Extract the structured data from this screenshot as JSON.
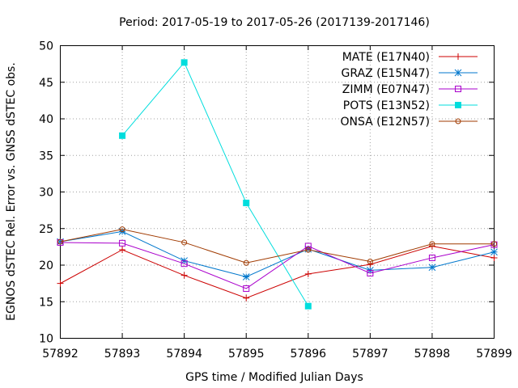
{
  "chart_data": {
    "type": "line",
    "title": "Period: 2017-05-19 to 2017-05-26 (2017139-2017146)",
    "xlabel": "GPS time / Modified Julian Days",
    "ylabel": "EGNOS dSTEC Rel. Error vs. GNSS dSTEC obs.",
    "xlim": [
      57892,
      57899
    ],
    "ylim": [
      10,
      50
    ],
    "xticks": [
      57892,
      57893,
      57894,
      57895,
      57896,
      57897,
      57898,
      57899
    ],
    "yticks": [
      10,
      15,
      20,
      25,
      30,
      35,
      40,
      45,
      50
    ],
    "grid": true,
    "legend_position": "top-right",
    "series": [
      {
        "name": "MATE (E17N40)",
        "color": "#cc0000",
        "marker": "plus",
        "x": [
          57892,
          57893,
          57894,
          57895,
          57896,
          57897,
          57898,
          57899
        ],
        "values": [
          17.5,
          22.1,
          18.6,
          15.5,
          18.8,
          20.1,
          22.6,
          21.0
        ]
      },
      {
        "name": "GRAZ (E15N47)",
        "color": "#0077cc",
        "marker": "star",
        "x": [
          57892,
          57893,
          57894,
          57895,
          57896,
          57897,
          57898,
          57899
        ],
        "values": [
          23.2,
          24.6,
          20.6,
          18.4,
          22.2,
          19.3,
          19.7,
          21.8
        ]
      },
      {
        "name": "ZIMM (E07N47)",
        "color": "#aa00cc",
        "marker": "square-open",
        "x": [
          57892,
          57893,
          57894,
          57895,
          57896,
          57897,
          57898,
          57899
        ],
        "values": [
          23.1,
          23.0,
          20.2,
          16.8,
          22.6,
          18.9,
          21.0,
          22.8
        ]
      },
      {
        "name": "POTS (E13N52)",
        "color": "#00dddd",
        "marker": "square-filled",
        "x": [
          57893,
          57894,
          57895,
          57896
        ],
        "values": [
          37.7,
          47.7,
          28.5,
          14.4
        ]
      },
      {
        "name": "ONSA (E12N57)",
        "color": "#a03a00",
        "marker": "circle-open",
        "x": [
          57892,
          57893,
          57894,
          57895,
          57896,
          57897,
          57898,
          57899
        ],
        "values": [
          23.2,
          24.9,
          23.1,
          20.3,
          22.1,
          20.5,
          22.9,
          22.9
        ]
      }
    ]
  }
}
